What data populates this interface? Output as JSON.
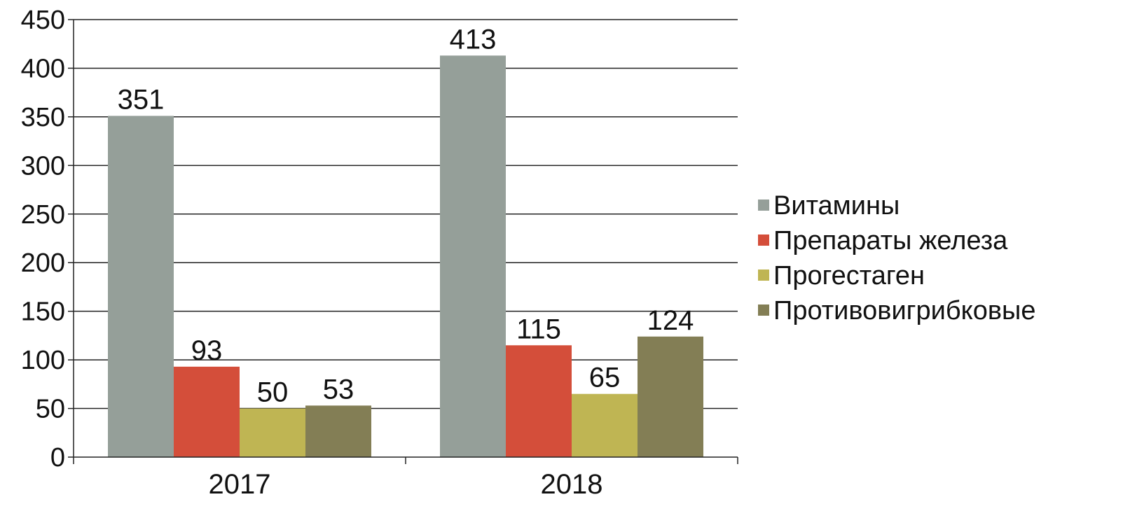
{
  "chart_data": {
    "type": "bar",
    "categories": [
      "2017",
      "2018"
    ],
    "series": [
      {
        "name": "Витамины",
        "values": [
          351,
          413
        ],
        "color": "#959f99"
      },
      {
        "name": "Препараты железа",
        "values": [
          93,
          115
        ],
        "color": "#d44e3a"
      },
      {
        "name": "Прогестаген",
        "values": [
          50,
          65
        ],
        "color": "#bfb553"
      },
      {
        "name": "Противовигрибковые",
        "values": [
          53,
          124
        ],
        "color": "#837e55"
      }
    ],
    "ylim": [
      0,
      450
    ],
    "yticks": [
      "0",
      "50",
      "100",
      "150",
      "200",
      "250",
      "300",
      "350",
      "400",
      "450"
    ],
    "grid": true,
    "legend_position": "right",
    "data_labels": true
  }
}
